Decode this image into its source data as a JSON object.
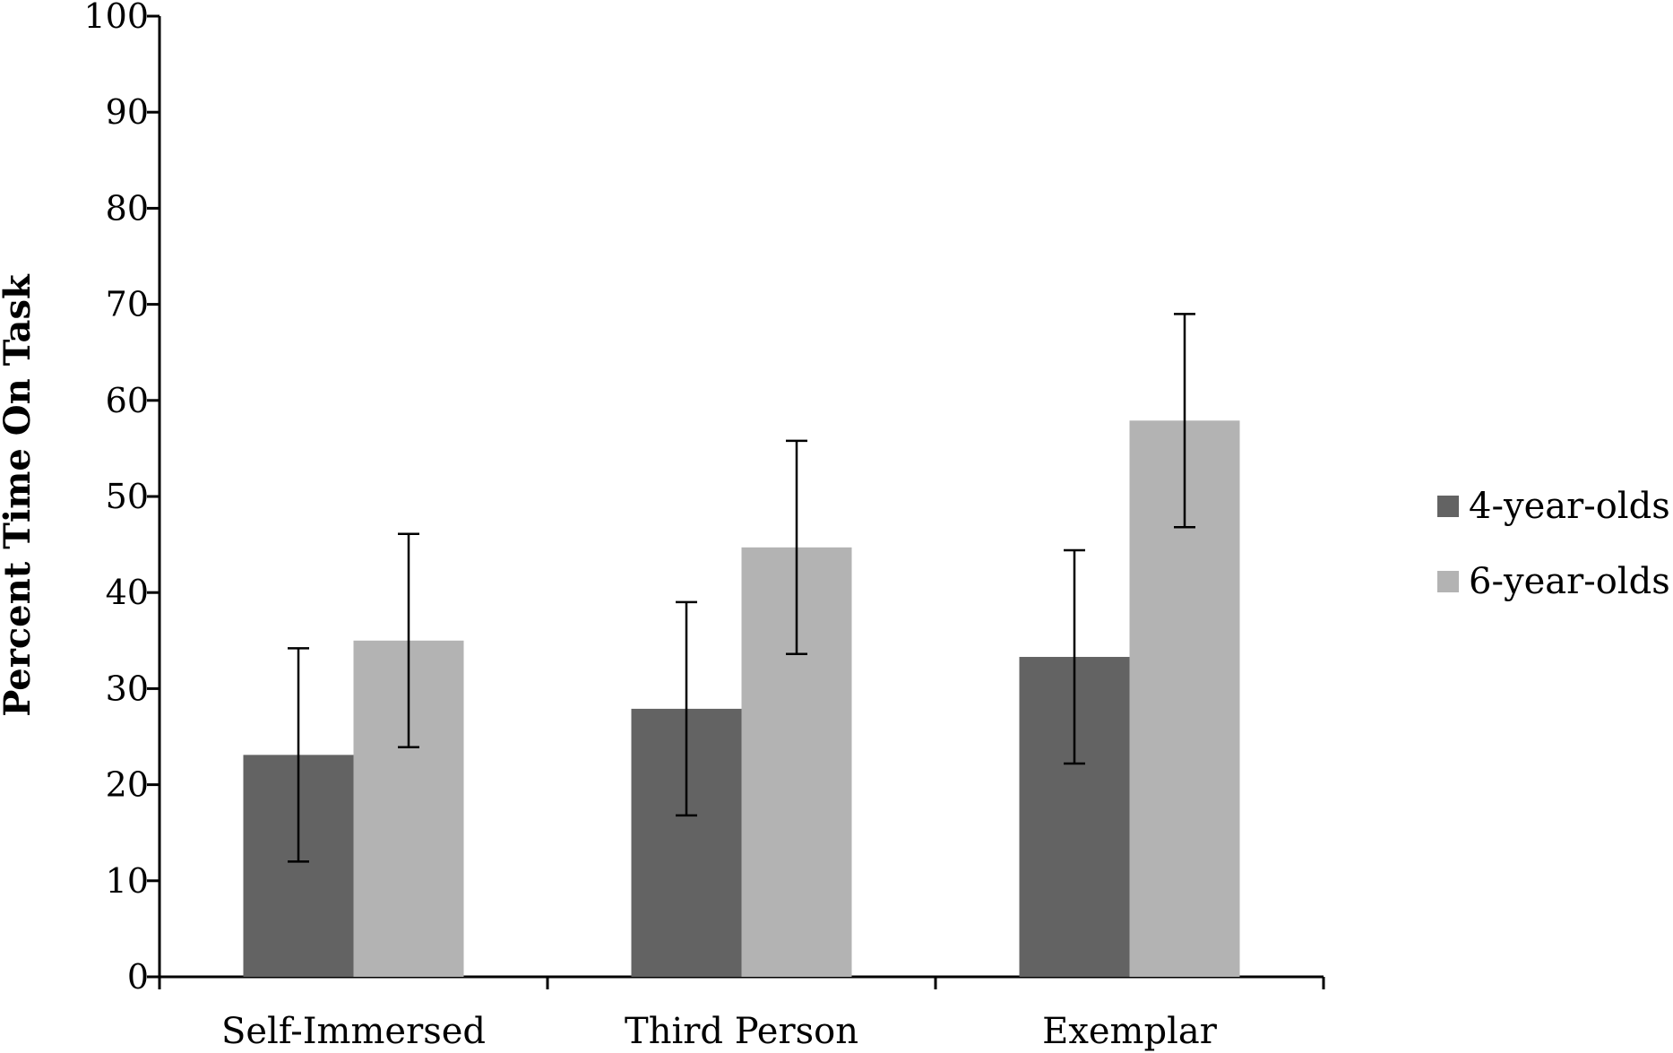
{
  "chart_data": {
    "type": "bar",
    "title": "",
    "xlabel": "",
    "ylabel": "Percent Time On Task",
    "ylim": [
      0,
      100
    ],
    "yticks": [
      0,
      10,
      20,
      30,
      40,
      50,
      60,
      70,
      80,
      90,
      100
    ],
    "ytick_labels": [
      "0",
      "10",
      "20",
      "30",
      "40",
      "50",
      "60",
      "70",
      "80",
      "90",
      "100"
    ],
    "categories": [
      "Self-Immersed",
      "Third Person",
      "Exemplar"
    ],
    "series": [
      {
        "name": "4-year-olds",
        "color": "#636363",
        "values": [
          23.1,
          27.9,
          33.3
        ],
        "error_low": [
          12.0,
          16.8,
          22.2
        ],
        "error_high": [
          34.2,
          39.0,
          44.4
        ]
      },
      {
        "name": "6-year-olds",
        "color": "#b3b3b3",
        "values": [
          35.0,
          44.7,
          57.9
        ],
        "error_low": [
          23.9,
          33.6,
          46.8
        ],
        "error_high": [
          46.1,
          55.8,
          69.0
        ]
      }
    ],
    "grid": false,
    "legend_position": "right"
  }
}
